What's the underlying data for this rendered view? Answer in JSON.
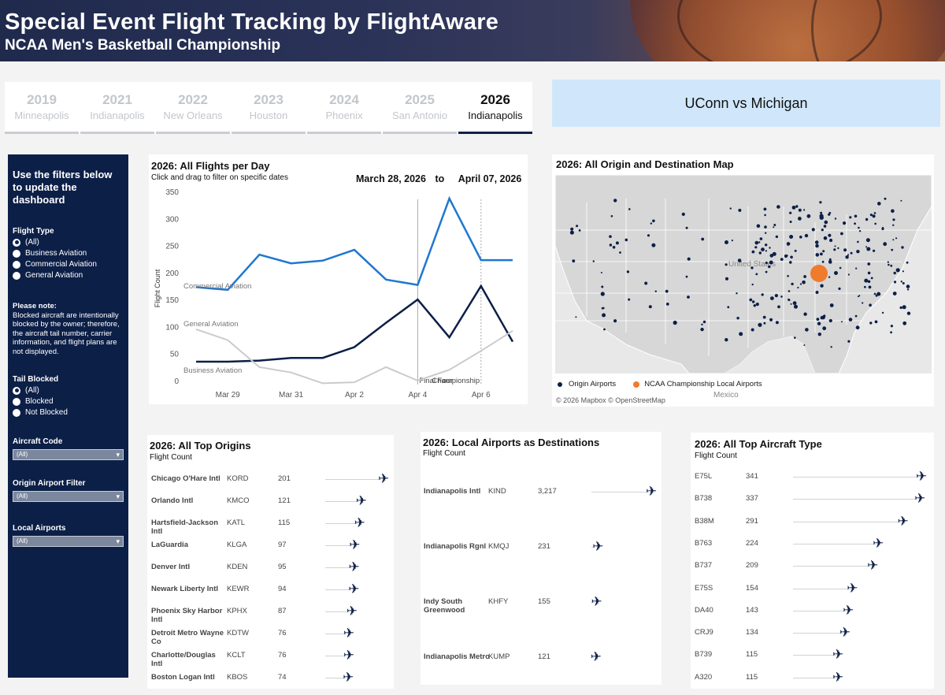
{
  "header": {
    "title": "Special Event Flight Tracking by FlightAware",
    "subtitle": "NCAA Men's Basketball Championship"
  },
  "tabs": [
    {
      "year": "2019",
      "city": "Minneapolis",
      "active": false
    },
    {
      "year": "2021",
      "city": "Indianapolis",
      "active": false
    },
    {
      "year": "2022",
      "city": "New Orleans",
      "active": false
    },
    {
      "year": "2023",
      "city": "Houston",
      "active": false
    },
    {
      "year": "2024",
      "city": "Phoenix",
      "active": false
    },
    {
      "year": "2025",
      "city": "San Antonio",
      "active": false
    },
    {
      "year": "2026",
      "city": "Indianapolis",
      "active": true
    }
  ],
  "matchup": "UConn vs Michigan",
  "sidebar": {
    "intro": "Use the filters below to update the dashboard",
    "flight_type_label": "Flight Type",
    "flight_type_options": [
      "(All)",
      "Business Aviation",
      "Commercial Aviation",
      "General Aviation"
    ],
    "note_title": "Please note:",
    "note_text": "Blocked aircraft are intentionally blocked by the owner; therefore, the aircraft tail number, carrier information, and flight plans are not displayed.",
    "tail_blocked_label": "Tail Blocked",
    "tail_blocked_options": [
      "(All)",
      "Blocked",
      "Not Blocked"
    ],
    "aircraft_code_label": "Aircraft Code",
    "aircraft_code_value": "(All)",
    "origin_filter_label": "Origin Airport Filter",
    "origin_filter_value": "(All)",
    "local_airports_label": "Local Airports",
    "local_airports_value": "(All)"
  },
  "line_card": {
    "title": "2026: All Flights per Day",
    "subtitle": "Click and drag to filter on specific dates",
    "date_from": "March 28, 2026",
    "date_to_word": "to",
    "date_to": "April 07, 2026",
    "final_four_label": "Final Four",
    "championship_label": "Championship"
  },
  "chart_data": {
    "type": "line",
    "ylabel": "Flight Count",
    "ylim": [
      0,
      350
    ],
    "yticks": [
      0,
      50,
      100,
      150,
      200,
      250,
      300,
      350
    ],
    "x": [
      "Mar 28",
      "Mar 29",
      "Mar 30",
      "Mar 31",
      "Apr 1",
      "Apr 2",
      "Apr 3",
      "Apr 4",
      "Apr 5",
      "Apr 6",
      "Apr 7"
    ],
    "xtick_labels": [
      "Mar 29",
      "Mar 31",
      "Apr 2",
      "Apr 4",
      "Apr 6"
    ],
    "series": [
      {
        "name": "Commercial Aviation",
        "color": "#1f77d0",
        "values": [
          173,
          168,
          233,
          217,
          222,
          242,
          187,
          177,
          337,
          223,
          223
        ]
      },
      {
        "name": "Business Aviation",
        "color": "#0c1f47",
        "values": [
          35,
          35,
          37,
          42,
          42,
          62,
          107,
          150,
          80,
          175,
          72
        ]
      },
      {
        "name": "General Aviation",
        "color": "#c9cbcf",
        "values": [
          95,
          75,
          25,
          15,
          -5,
          -3,
          25,
          0,
          20,
          55,
          92
        ]
      }
    ],
    "markers": [
      "Apr 4",
      "Apr 6"
    ]
  },
  "map_card": {
    "title": "2026: All Origin and Destination Map",
    "label_country": "United States",
    "label_mexico": "Mexico",
    "legend_origin": "Origin Airports",
    "legend_local": "NCAA Championship Local Airports",
    "attribution": "© 2026 Mapbox  © OpenStreetMap",
    "origin_color": "#0c1f47",
    "local_color": "#f07b2d"
  },
  "origins_card": {
    "title": "2026: All Top Origins",
    "subtitle": "Flight Count",
    "rows": [
      {
        "name": "Chicago O'Hare Intl",
        "code": "KORD",
        "count": "201",
        "value": 201
      },
      {
        "name": "Orlando Intl",
        "code": "KMCO",
        "count": "121",
        "value": 121
      },
      {
        "name": "Hartsfield-Jackson Intl",
        "code": "KATL",
        "count": "115",
        "value": 115
      },
      {
        "name": "LaGuardia",
        "code": "KLGA",
        "count": "97",
        "value": 97
      },
      {
        "name": "Denver Intl",
        "code": "KDEN",
        "count": "95",
        "value": 95
      },
      {
        "name": "Newark Liberty Intl",
        "code": "KEWR",
        "count": "94",
        "value": 94
      },
      {
        "name": "Phoenix Sky Harbor Intl",
        "code": "KPHX",
        "count": "87",
        "value": 87
      },
      {
        "name": "Detroit Metro Wayne Co",
        "code": "KDTW",
        "count": "76",
        "value": 76
      },
      {
        "name": "Charlotte/Douglas Intl",
        "code": "KCLT",
        "count": "76",
        "value": 76
      },
      {
        "name": "Boston Logan Intl",
        "code": "KBOS",
        "count": "74",
        "value": 74
      }
    ]
  },
  "local_card": {
    "title": "2026: Local Airports as Destinations",
    "subtitle": "Flight Count",
    "rows": [
      {
        "name": "Indianapolis Intl",
        "code": "KIND",
        "count": "3,217",
        "value": 3217
      },
      {
        "name": "Indianapolis Rgnl",
        "code": "KMQJ",
        "count": "231",
        "value": 231
      },
      {
        "name": "Indy South Greenwood",
        "code": "KHFY",
        "count": "155",
        "value": 155
      },
      {
        "name": "Indianapolis Metro",
        "code": "KUMP",
        "count": "121",
        "value": 121
      }
    ]
  },
  "aircraft_card": {
    "title": "2026: All Top Aircraft Type",
    "subtitle": "Flight Count",
    "rows": [
      {
        "code": "E75L",
        "count": "341",
        "value": 341
      },
      {
        "code": "B738",
        "count": "337",
        "value": 337
      },
      {
        "code": "B38M",
        "count": "291",
        "value": 291
      },
      {
        "code": "B763",
        "count": "224",
        "value": 224
      },
      {
        "code": "B737",
        "count": "209",
        "value": 209
      },
      {
        "code": "E75S",
        "count": "154",
        "value": 154
      },
      {
        "code": "DA40",
        "count": "143",
        "value": 143
      },
      {
        "code": "CRJ9",
        "count": "134",
        "value": 134
      },
      {
        "code": "B739",
        "count": "115",
        "value": 115
      },
      {
        "code": "A320",
        "count": "115",
        "value": 115
      }
    ]
  }
}
